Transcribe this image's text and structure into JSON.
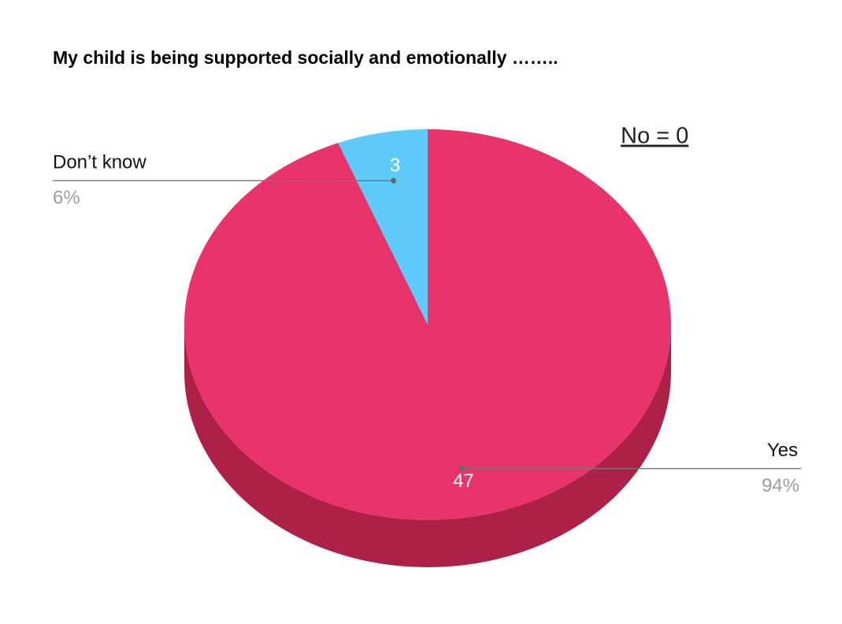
{
  "chart_data": {
    "type": "pie3d",
    "title": "My child is being supported socially and emotionally ……..",
    "annotation": "No = 0",
    "categories": [
      "Yes",
      "Don’t know"
    ],
    "values": [
      47,
      3
    ],
    "percent_labels": [
      "94%",
      "6%"
    ],
    "colors": [
      "#e8346a",
      "#5ecbfa"
    ],
    "side_color": "#ad2149"
  }
}
